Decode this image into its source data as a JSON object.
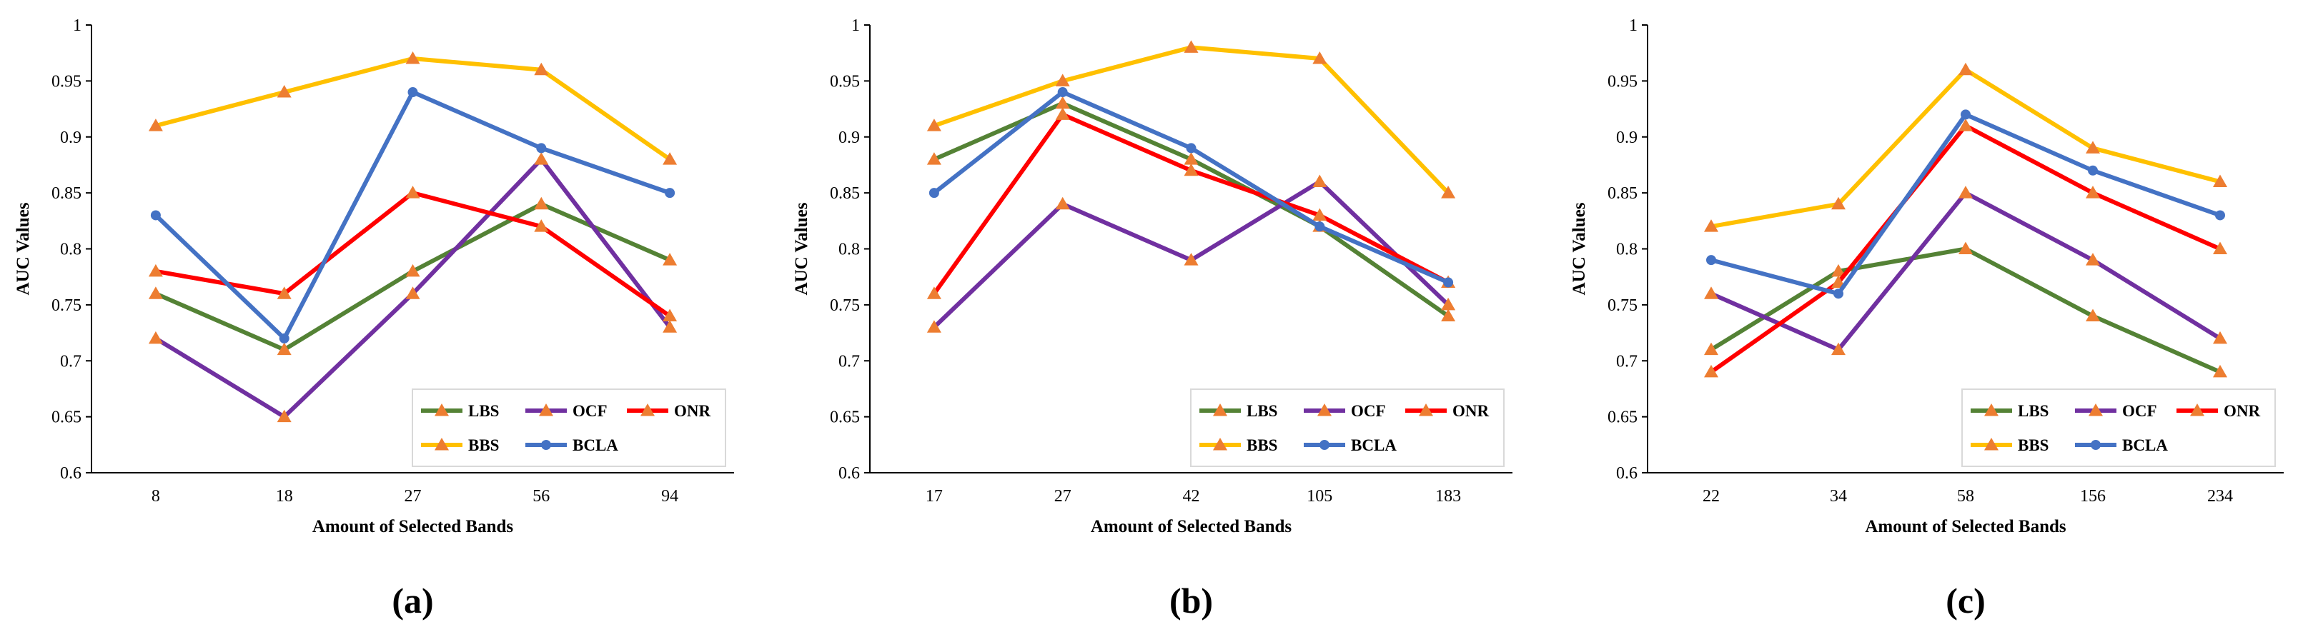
{
  "colors": {
    "LBS": "#548235",
    "OCF": "#7030A0",
    "ONR": "#FF0000",
    "BBS": "#FFC000",
    "BCLA": "#4472C4",
    "triangle_marker": "#ED7D31"
  },
  "chart_data": [
    {
      "type": "line",
      "caption": "(a)",
      "xlabel": "Amount of Selected Bands",
      "ylabel": "AUC Values",
      "ylim": [
        0.6,
        1
      ],
      "yticks": [
        "0.6",
        "0.65",
        "0.7",
        "0.75",
        "0.8",
        "0.85",
        "0.9",
        "0.95",
        "1"
      ],
      "categories": [
        "8",
        "18",
        "27",
        "56",
        "94"
      ],
      "grid": false,
      "legend_position": "bottom-right",
      "series": [
        {
          "name": "LBS",
          "marker": "triangle",
          "values": [
            0.76,
            0.71,
            0.78,
            0.84,
            0.79
          ]
        },
        {
          "name": "OCF",
          "marker": "triangle",
          "values": [
            0.72,
            0.65,
            0.76,
            0.88,
            0.73
          ]
        },
        {
          "name": "ONR",
          "marker": "triangle",
          "values": [
            0.78,
            0.76,
            0.85,
            0.82,
            0.74
          ]
        },
        {
          "name": "BBS",
          "marker": "triangle",
          "values": [
            0.91,
            0.94,
            0.97,
            0.96,
            0.88
          ]
        },
        {
          "name": "BCLA",
          "marker": "circle",
          "values": [
            0.83,
            0.72,
            0.94,
            0.89,
            0.85
          ]
        }
      ]
    },
    {
      "type": "line",
      "caption": "(b)",
      "xlabel": "Amount of Selected Bands",
      "ylabel": "AUC Values",
      "ylim": [
        0.6,
        1
      ],
      "yticks": [
        "0.6",
        "0.65",
        "0.7",
        "0.75",
        "0.8",
        "0.85",
        "0.9",
        "0.95",
        "1"
      ],
      "categories": [
        "17",
        "27",
        "42",
        "105",
        "183"
      ],
      "grid": false,
      "legend_position": "bottom-right",
      "series": [
        {
          "name": "LBS",
          "marker": "triangle",
          "values": [
            0.88,
            0.93,
            0.88,
            0.82,
            0.74
          ]
        },
        {
          "name": "OCF",
          "marker": "triangle",
          "values": [
            0.73,
            0.84,
            0.79,
            0.86,
            0.75
          ]
        },
        {
          "name": "ONR",
          "marker": "triangle",
          "values": [
            0.76,
            0.92,
            0.87,
            0.83,
            0.77
          ]
        },
        {
          "name": "BBS",
          "marker": "triangle",
          "values": [
            0.91,
            0.95,
            0.98,
            0.97,
            0.85
          ]
        },
        {
          "name": "BCLA",
          "marker": "circle",
          "values": [
            0.85,
            0.94,
            0.89,
            0.82,
            0.77
          ]
        }
      ]
    },
    {
      "type": "line",
      "caption": "(c)",
      "xlabel": "Amount of Selected Bands",
      "ylabel": "AUC Values",
      "ylim": [
        0.6,
        1
      ],
      "yticks": [
        "0.6",
        "0.65",
        "0.7",
        "0.75",
        "0.8",
        "0.85",
        "0.9",
        "0.95",
        "1"
      ],
      "categories": [
        "22",
        "34",
        "58",
        "156",
        "234"
      ],
      "grid": false,
      "legend_position": "bottom-right",
      "series": [
        {
          "name": "LBS",
          "marker": "triangle",
          "values": [
            0.71,
            0.78,
            0.8,
            0.74,
            0.69
          ]
        },
        {
          "name": "OCF",
          "marker": "triangle",
          "values": [
            0.76,
            0.71,
            0.85,
            0.79,
            0.72
          ]
        },
        {
          "name": "ONR",
          "marker": "triangle",
          "values": [
            0.69,
            0.77,
            0.91,
            0.85,
            0.8
          ]
        },
        {
          "name": "BBS",
          "marker": "triangle",
          "values": [
            0.82,
            0.84,
            0.96,
            0.89,
            0.86
          ]
        },
        {
          "name": "BCLA",
          "marker": "circle",
          "values": [
            0.79,
            0.76,
            0.92,
            0.87,
            0.83
          ]
        }
      ]
    }
  ]
}
